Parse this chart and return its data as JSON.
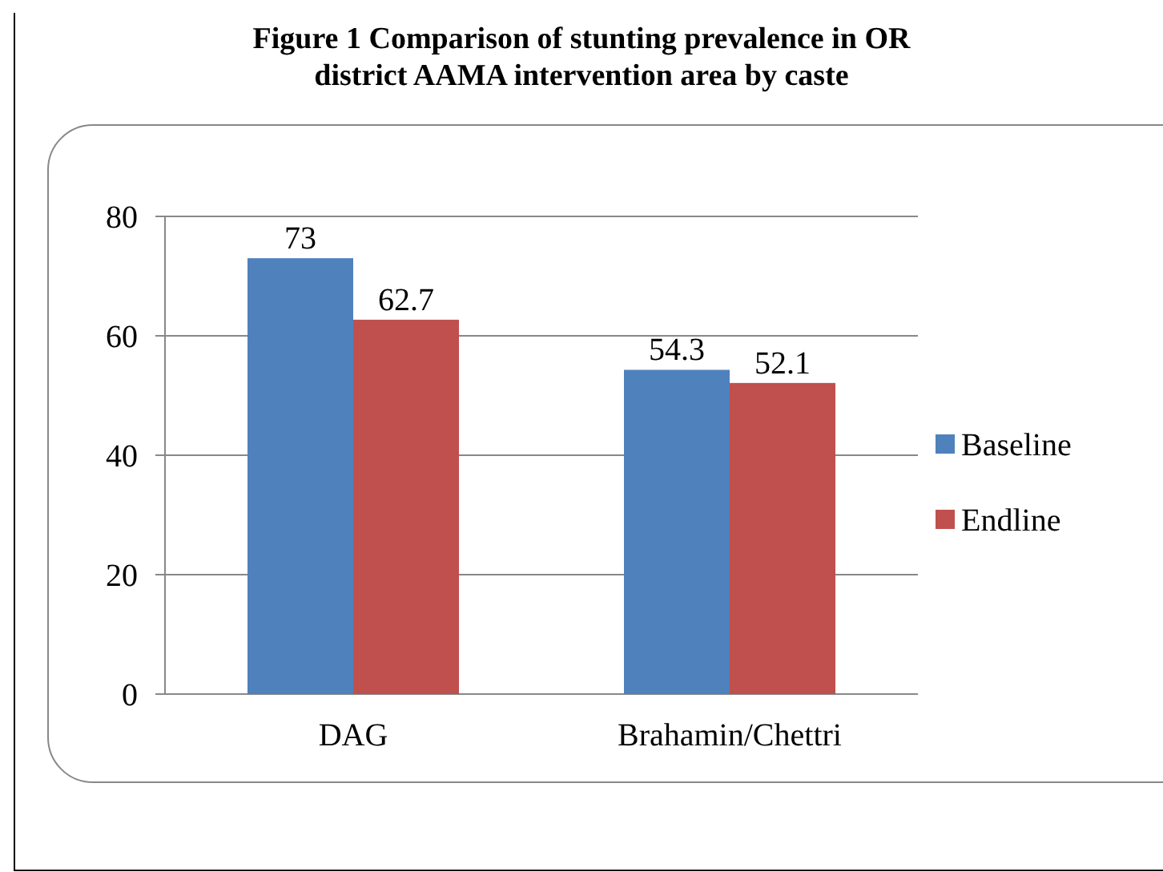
{
  "chart_data": {
    "type": "bar",
    "title": "Figure 1 Comparison of stunting prevalence in OR district AAMA intervention area by caste",
    "categories": [
      "DAG",
      "Brahamin/Chettri"
    ],
    "series": [
      {
        "name": "Baseline",
        "color": "#4f81bd",
        "values": [
          73,
          54.3
        ]
      },
      {
        "name": "Endline",
        "color": "#c0504d",
        "values": [
          62.7,
          52.1
        ]
      }
    ],
    "ylim": [
      0,
      80
    ],
    "yticks": [
      0,
      20,
      40,
      60,
      80
    ],
    "grid": "y",
    "legend": "right",
    "data_labels": true
  }
}
